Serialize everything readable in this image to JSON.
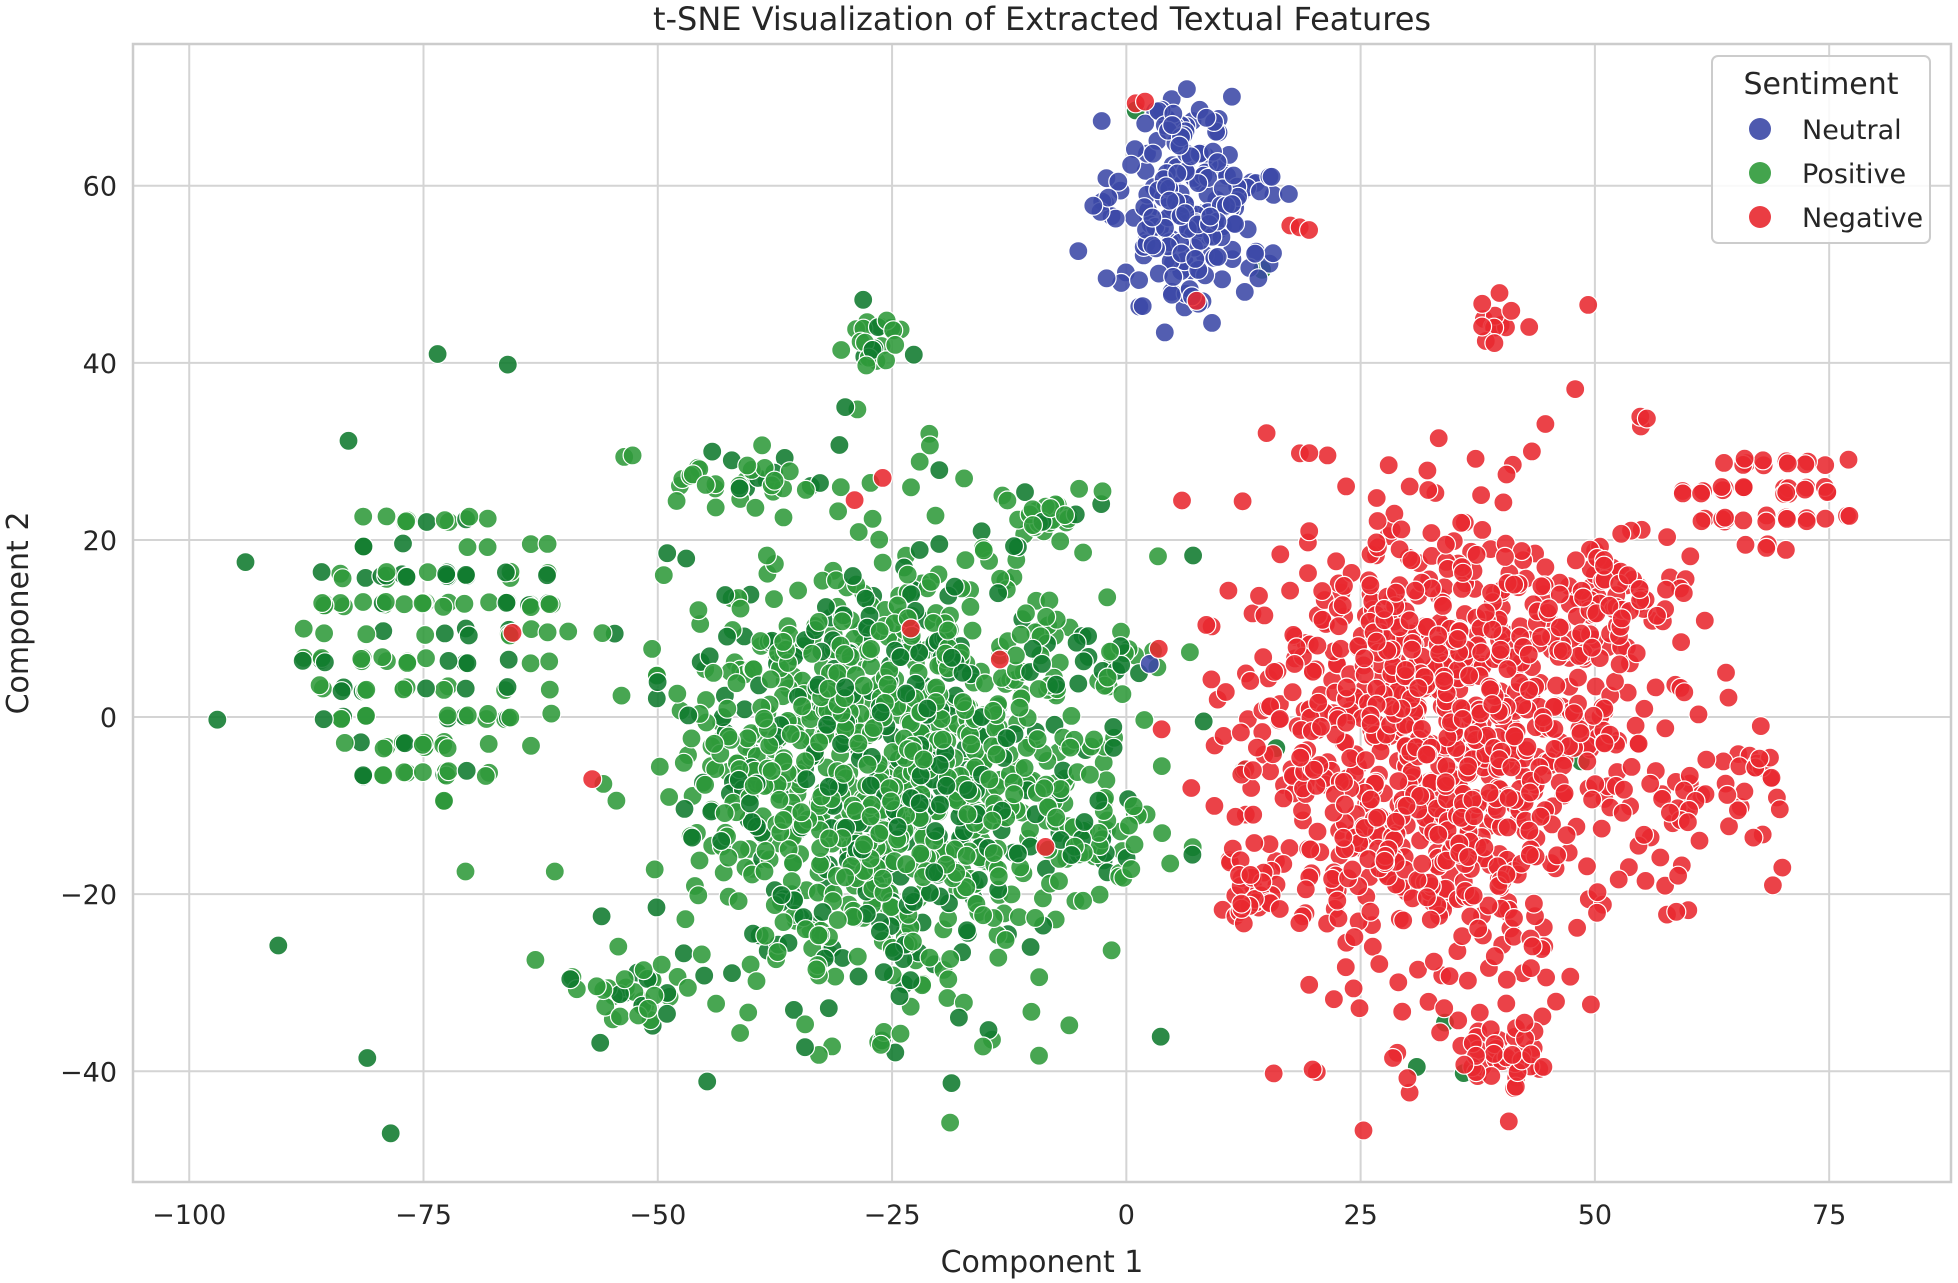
{
  "chart_data": {
    "type": "scatter",
    "title": "t-SNE Visualization of Extracted Textual Features",
    "xlabel": "Component 1",
    "ylabel": "Component 2",
    "xlim": [
      -106,
      88
    ],
    "ylim": [
      -52.5,
      76
    ],
    "xticks": [
      -100,
      -75,
      -50,
      -25,
      0,
      25,
      50,
      75
    ],
    "xtick_labels": [
      "−100",
      "−75",
      "−50",
      "−25",
      "0",
      "25",
      "50",
      "75"
    ],
    "yticks": [
      -40,
      -20,
      0,
      20,
      40,
      60
    ],
    "ytick_labels": [
      "−40",
      "−20",
      "0",
      "20",
      "40",
      "60"
    ],
    "grid": true,
    "legend": {
      "title": "Sentiment",
      "placement": "top-right",
      "entries": [
        "Neutral",
        "Positive",
        "Negative"
      ]
    },
    "colors": {
      "Neutral": "#3b48a6",
      "Positive": "#2f9a3a",
      "Negative": "#e8282f",
      "Positive_dark": "#0f7a2e",
      "mixed": "#b0154a"
    },
    "seed": 20240611,
    "series": [
      {
        "name": "Positive",
        "clusters": [
          {
            "cx": -73,
            "cy": 7,
            "sx": 8.5,
            "sy": 17,
            "n": 170,
            "shape": "grid"
          },
          {
            "cx": -25,
            "cy": -6,
            "sx": 11,
            "sy": 13,
            "n": 1150,
            "shape": "gauss"
          },
          {
            "cx": -40,
            "cy": 27,
            "sx": 5,
            "sy": 1.5,
            "n": 40,
            "shape": "gauss"
          },
          {
            "cx": -27,
            "cy": 42.5,
            "sx": 1.8,
            "sy": 1.8,
            "n": 22,
            "shape": "gauss"
          },
          {
            "cx": -7,
            "cy": 22,
            "sx": 3.5,
            "sy": 2,
            "n": 30,
            "shape": "gauss"
          },
          {
            "cx": -4,
            "cy": -13,
            "sx": 3,
            "sy": 5,
            "n": 45,
            "shape": "gauss"
          },
          {
            "cx": -53,
            "cy": -31,
            "sx": 3.5,
            "sy": 2.5,
            "n": 35,
            "shape": "gauss"
          },
          {
            "cx": -2,
            "cy": 6,
            "sx": 2.5,
            "sy": 2,
            "n": 22,
            "shape": "gauss"
          }
        ],
        "points": [
          [
            -97,
            -0.3
          ],
          [
            -90.5,
            -25.8
          ],
          [
            -81,
            -38.5
          ],
          [
            -78.5,
            -47
          ],
          [
            -73.5,
            41
          ],
          [
            -66,
            39.8
          ],
          [
            -83,
            31.2
          ],
          [
            -94,
            17.5
          ],
          [
            -49,
            18.5
          ],
          [
            -30,
            35
          ],
          [
            -9,
            6
          ],
          [
            -56,
            -22.5
          ],
          [
            5.5,
            64.5
          ],
          [
            14.5,
            50.5
          ],
          [
            1,
            68.5
          ],
          [
            34,
            -34.5
          ],
          [
            36,
            -40.2
          ],
          [
            16,
            -3.5
          ],
          [
            48.5,
            -5
          ],
          [
            12.5,
            -6
          ],
          [
            31,
            -39.5
          ]
        ]
      },
      {
        "name": "Neutral",
        "clusters": [
          {
            "cx": 7,
            "cy": 57.5,
            "sx": 4,
            "sy": 4.8,
            "n": 190,
            "shape": "gauss"
          },
          {
            "cx": 5,
            "cy": 67,
            "sx": 2,
            "sy": 1.5,
            "n": 18,
            "shape": "gauss"
          }
        ],
        "points": [
          [
            15.5,
            61
          ],
          [
            2.5,
            6
          ],
          [
            7,
            47.5
          ]
        ]
      },
      {
        "name": "Negative",
        "clusters": [
          {
            "cx": 34,
            "cy": -2,
            "sx": 11,
            "sy": 13,
            "n": 1050,
            "shape": "gauss"
          },
          {
            "cx": 69,
            "cy": 25,
            "sx": 5.5,
            "sy": 5.5,
            "n": 55,
            "shape": "grid"
          },
          {
            "cx": 39,
            "cy": 44.5,
            "sx": 1,
            "sy": 1.5,
            "n": 12,
            "shape": "gauss"
          },
          {
            "cx": 13,
            "cy": -20,
            "sx": 1.5,
            "sy": 1.5,
            "n": 26,
            "shape": "gauss"
          },
          {
            "cx": 39,
            "cy": -38,
            "sx": 3,
            "sy": 2,
            "n": 40,
            "shape": "gauss"
          },
          {
            "cx": 64,
            "cy": -8,
            "sx": 4,
            "sy": 3,
            "n": 35,
            "shape": "gauss"
          },
          {
            "cx": 52,
            "cy": 13,
            "sx": 3,
            "sy": 3,
            "n": 50,
            "shape": "gauss"
          }
        ],
        "points": [
          [
            1,
            69.3
          ],
          [
            2,
            69.5
          ],
          [
            17.5,
            55.5
          ],
          [
            18.5,
            55.3
          ],
          [
            19.5,
            55
          ],
          [
            7.5,
            47
          ],
          [
            -65.5,
            9.5
          ],
          [
            -23,
            10
          ],
          [
            -13.5,
            6.5
          ],
          [
            -26,
            27
          ],
          [
            -29,
            24.5
          ],
          [
            -57,
            -7
          ],
          [
            70,
            -17
          ],
          [
            69,
            -19
          ],
          [
            13.5,
            -6
          ],
          [
            44.5,
            -39.5
          ]
        ]
      }
    ]
  }
}
